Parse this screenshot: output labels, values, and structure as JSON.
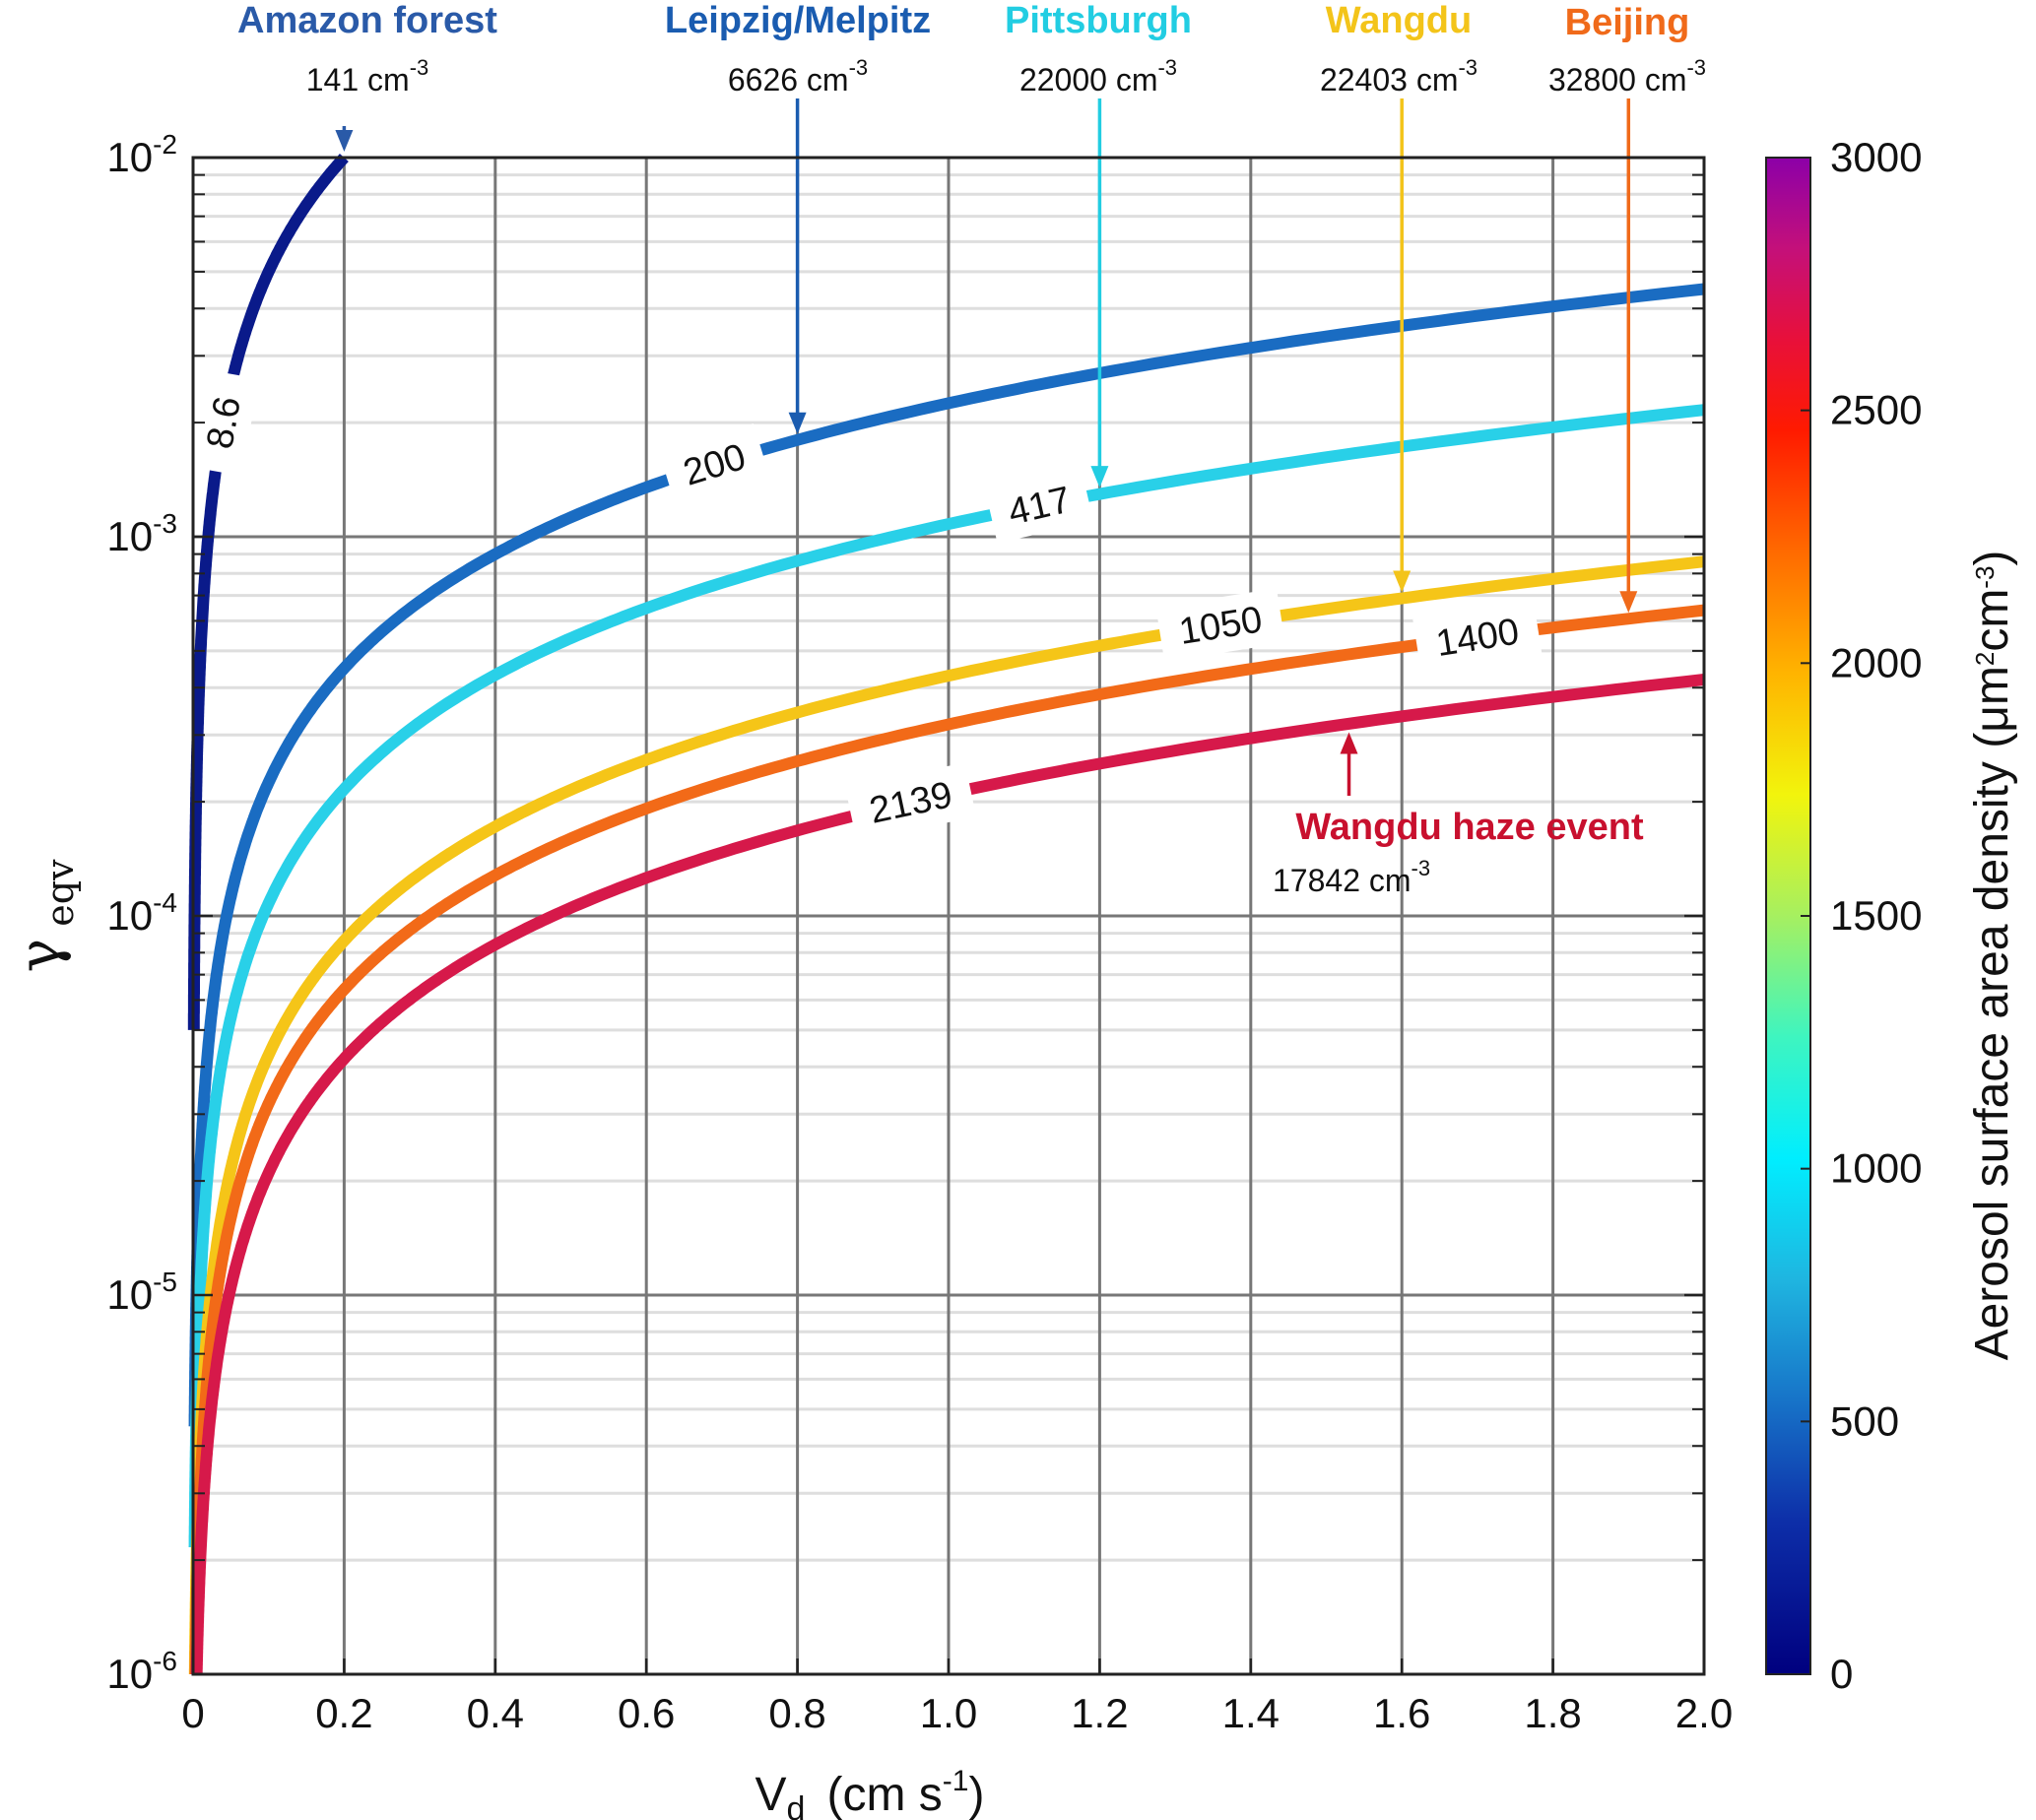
{
  "chart_data": {
    "type": "line",
    "xlabel": "V",
    "xlabel_sub": "d",
    "xlabel_units": "(cm s",
    "xlabel_units_sup": "-1",
    "xlabel_units_close": ")",
    "ylabel": "γ",
    "ylabel_sub": "eqv",
    "xlim": [
      0,
      2.0
    ],
    "ylim": [
      1e-06,
      0.01
    ],
    "yscale": "log",
    "grid": true,
    "x_ticks": [
      "0",
      "0.2",
      "0.4",
      "0.6",
      "0.8",
      "1.0",
      "1.2",
      "1.4",
      "1.6",
      "1.8",
      "2.0"
    ],
    "y_ticks": [
      {
        "base": "10",
        "exp": "-6"
      },
      {
        "base": "10",
        "exp": "-5"
      },
      {
        "base": "10",
        "exp": "-4"
      },
      {
        "base": "10",
        "exp": "-3"
      },
      {
        "base": "10",
        "exp": "-2"
      }
    ],
    "colorbar": {
      "label": "Aerosol surface area density",
      "units_open": "(μm",
      "units_sup1": "2",
      "units_mid": "cm",
      "units_sup2": "-3",
      "units_close": ")",
      "range": [
        0,
        3000
      ],
      "ticks": [
        "0",
        "500",
        "1000",
        "1500",
        "2000",
        "2500",
        "3000"
      ]
    },
    "series": [
      {
        "label": "8.6",
        "color": "#0a1a8a",
        "x": [
          0.001,
          0.02,
          0.05,
          0.1,
          0.15,
          0.2
        ],
        "y": [
          5e-05,
          0.001,
          0.0025,
          0.005,
          0.0075,
          0.01
        ]
      },
      {
        "label": "200",
        "color": "#1a6cc2",
        "x": [
          0.002,
          0.05,
          0.1,
          0.2,
          0.4,
          0.6,
          0.8,
          1.0,
          1.2,
          1.4,
          1.6,
          1.8,
          2.0
        ],
        "y": [
          4.5e-06,
          0.00011,
          0.00022,
          0.00045,
          0.0009,
          0.00135,
          0.0018,
          0.00225,
          0.0027,
          0.00315,
          0.0036,
          0.00405,
          0.0045
        ]
      },
      {
        "label": "417",
        "color": "#29d0e8",
        "x": [
          0.002,
          0.05,
          0.1,
          0.2,
          0.4,
          0.6,
          0.8,
          1.0,
          1.2,
          1.4,
          1.6,
          1.8,
          2.0
        ],
        "y": [
          2.2e-06,
          5.4e-05,
          0.000108,
          0.000216,
          0.00043,
          0.00065,
          0.00086,
          0.00108,
          0.0013,
          0.00151,
          0.00173,
          0.00194,
          0.00216
        ]
      },
      {
        "label": "1050",
        "color": "#f5c518",
        "x": [
          0.002,
          0.05,
          0.1,
          0.2,
          0.4,
          0.6,
          0.8,
          1.0,
          1.2,
          1.4,
          1.6,
          1.8,
          2.0
        ],
        "y": [
          8.6e-07,
          2.15e-05,
          4.3e-05,
          8.6e-05,
          0.000172,
          0.000258,
          0.000344,
          0.00043,
          0.000516,
          0.000602,
          0.000688,
          0.000774,
          0.00086
        ]
      },
      {
        "label": "1400",
        "color": "#f26a18",
        "x": [
          0.002,
          0.05,
          0.1,
          0.2,
          0.4,
          0.6,
          0.8,
          1.0,
          1.2,
          1.4,
          1.6,
          1.8,
          2.0
        ],
        "y": [
          6.4e-07,
          1.6e-05,
          3.2e-05,
          6.4e-05,
          0.000128,
          0.000192,
          0.000256,
          0.00032,
          0.000384,
          0.000448,
          0.000512,
          0.000576,
          0.00064
        ]
      },
      {
        "label": "2139",
        "color": "#d6194a",
        "x": [
          0.002,
          0.05,
          0.1,
          0.2,
          0.4,
          0.6,
          0.8,
          1.0,
          1.2,
          1.4,
          1.6,
          1.8,
          2.0
        ],
        "y": [
          4.2e-07,
          1.05e-05,
          2.1e-05,
          4.2e-05,
          8.4e-05,
          0.000126,
          0.000168,
          0.00021,
          0.000252,
          0.000294,
          0.000336,
          0.000378,
          0.00042
        ]
      }
    ],
    "annotations": [
      {
        "name": "Amazon forest",
        "conc": "141 cm",
        "sup": "-3",
        "color": "#2a5aa8",
        "x": 0.2,
        "y": 0.01
      },
      {
        "name": "Leipzig/Melpitz",
        "conc": "6626 cm",
        "sup": "-3",
        "color": "#1a5cb0",
        "x": 0.8,
        "y": 0.0018
      },
      {
        "name": "Pittsburgh",
        "conc": "22000 cm",
        "sup": "-3",
        "color": "#22cde2",
        "x": 1.2,
        "y": 0.0013
      },
      {
        "name": "Wangdu",
        "conc": "22403 cm",
        "sup": "-3",
        "color": "#f3c41a",
        "x": 1.6,
        "y": 0.000688
      },
      {
        "name": "Beijing",
        "conc": "32800 cm",
        "sup": "-3",
        "color": "#f06a1a",
        "x": 1.9,
        "y": 0.000608
      },
      {
        "name": "Wangdu haze event",
        "conc": "17842 cm",
        "sup": "-3",
        "color": "#c8102e",
        "x": 1.53,
        "y": 0.00032
      }
    ]
  }
}
